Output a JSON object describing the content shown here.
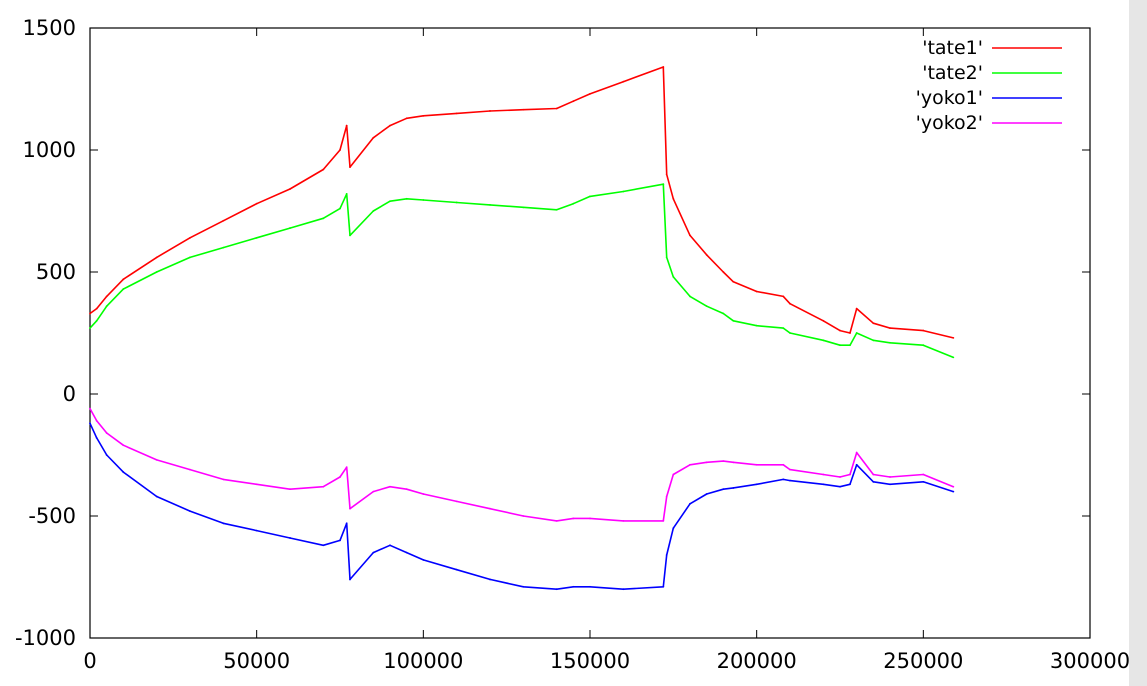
{
  "chart_data": {
    "type": "line",
    "title": "",
    "xlabel": "",
    "ylabel": "",
    "xlim": [
      0,
      300000
    ],
    "ylim": [
      -1000,
      1500
    ],
    "x_ticks": [
      0,
      50000,
      100000,
      150000,
      200000,
      250000,
      300000
    ],
    "x_tick_labels": [
      "0",
      "50000",
      "100000",
      "150000",
      "200000",
      "250000",
      "300000"
    ],
    "y_ticks": [
      -1000,
      -500,
      0,
      500,
      1000,
      1500
    ],
    "y_tick_labels": [
      "-1000",
      "-500",
      "0",
      "500",
      "1000",
      "1500"
    ],
    "grid": false,
    "legend_position": "top-right",
    "series": [
      {
        "name": "'tate1'",
        "color": "#ff0000",
        "x": [
          0,
          2000,
          5000,
          10000,
          20000,
          30000,
          40000,
          50000,
          60000,
          70000,
          75000,
          77000,
          78000,
          85000,
          90000,
          95000,
          100000,
          110000,
          120000,
          130000,
          140000,
          145000,
          150000,
          160000,
          172000,
          173000,
          175000,
          180000,
          185000,
          190000,
          193000,
          200000,
          208000,
          210000,
          220000,
          225000,
          228000,
          230000,
          235000,
          240000,
          250000,
          259000
        ],
        "y": [
          330,
          350,
          400,
          470,
          560,
          640,
          710,
          780,
          840,
          920,
          1000,
          1100,
          930,
          1050,
          1100,
          1130,
          1140,
          1150,
          1160,
          1165,
          1170,
          1200,
          1230,
          1280,
          1340,
          900,
          800,
          650,
          570,
          500,
          460,
          420,
          400,
          370,
          300,
          260,
          250,
          350,
          290,
          270,
          260,
          230
        ]
      },
      {
        "name": "'tate2'",
        "color": "#00ff00",
        "x": [
          0,
          2000,
          5000,
          10000,
          20000,
          30000,
          40000,
          50000,
          60000,
          70000,
          75000,
          77000,
          78000,
          85000,
          90000,
          95000,
          100000,
          110000,
          120000,
          130000,
          140000,
          145000,
          150000,
          160000,
          172000,
          173000,
          175000,
          180000,
          185000,
          190000,
          193000,
          200000,
          208000,
          210000,
          220000,
          225000,
          228000,
          230000,
          235000,
          240000,
          250000,
          259000
        ],
        "y": [
          270,
          300,
          360,
          430,
          500,
          560,
          600,
          640,
          680,
          720,
          760,
          820,
          650,
          750,
          790,
          800,
          795,
          785,
          775,
          765,
          755,
          780,
          810,
          830,
          860,
          560,
          480,
          400,
          360,
          330,
          300,
          280,
          270,
          250,
          220,
          200,
          200,
          250,
          220,
          210,
          200,
          150
        ]
      },
      {
        "name": "'yoko1'",
        "color": "#0000ff",
        "x": [
          0,
          2000,
          5000,
          10000,
          20000,
          30000,
          40000,
          50000,
          60000,
          70000,
          75000,
          77000,
          78000,
          85000,
          90000,
          95000,
          100000,
          110000,
          120000,
          130000,
          140000,
          145000,
          150000,
          160000,
          172000,
          173000,
          175000,
          180000,
          185000,
          190000,
          193000,
          200000,
          208000,
          210000,
          220000,
          225000,
          228000,
          230000,
          235000,
          240000,
          250000,
          259000
        ],
        "y": [
          -120,
          -180,
          -250,
          -320,
          -420,
          -480,
          -530,
          -560,
          -590,
          -620,
          -600,
          -530,
          -760,
          -650,
          -620,
          -650,
          -680,
          -720,
          -760,
          -790,
          -800,
          -790,
          -790,
          -800,
          -790,
          -660,
          -550,
          -450,
          -410,
          -390,
          -385,
          -370,
          -350,
          -355,
          -370,
          -380,
          -370,
          -290,
          -360,
          -370,
          -360,
          -400
        ]
      },
      {
        "name": "'yoko2'",
        "color": "#ff00ff",
        "x": [
          0,
          2000,
          5000,
          10000,
          20000,
          30000,
          40000,
          50000,
          60000,
          70000,
          75000,
          77000,
          78000,
          85000,
          90000,
          95000,
          100000,
          110000,
          120000,
          130000,
          140000,
          145000,
          150000,
          160000,
          172000,
          173000,
          175000,
          180000,
          185000,
          190000,
          193000,
          200000,
          208000,
          210000,
          220000,
          225000,
          228000,
          230000,
          235000,
          240000,
          250000,
          259000
        ],
        "y": [
          -60,
          -110,
          -160,
          -210,
          -270,
          -310,
          -350,
          -370,
          -390,
          -380,
          -340,
          -300,
          -470,
          -400,
          -380,
          -390,
          -410,
          -440,
          -470,
          -500,
          -520,
          -510,
          -510,
          -520,
          -520,
          -420,
          -330,
          -290,
          -280,
          -275,
          -280,
          -290,
          -290,
          -310,
          -330,
          -340,
          -330,
          -240,
          -330,
          -340,
          -330,
          -380
        ]
      }
    ]
  },
  "scrollbar": {
    "color": "#e6e6e6"
  }
}
